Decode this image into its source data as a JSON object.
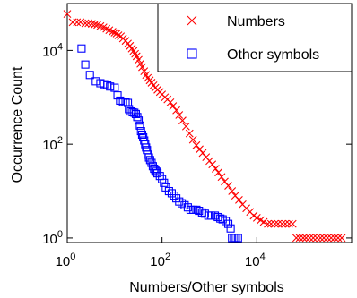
{
  "chart_data": {
    "type": "scatter",
    "xlabel": "Numbers/Other symbols",
    "ylabel": "Occurrence Count",
    "xscale": "log",
    "yscale": "log",
    "xlim": [
      1,
      1000000
    ],
    "ylim": [
      0.8,
      100000
    ],
    "xticks": [
      {
        "value": 1,
        "base": "10",
        "exp": "0"
      },
      {
        "value": 100,
        "base": "10",
        "exp": "2"
      },
      {
        "value": 10000,
        "base": "10",
        "exp": "4"
      }
    ],
    "yticks": [
      {
        "value": 1,
        "base": "10",
        "exp": "0"
      },
      {
        "value": 100,
        "base": "10",
        "exp": "2"
      },
      {
        "value": 10000,
        "base": "10",
        "exp": "4"
      }
    ],
    "grid": false,
    "legend_position": "top-right",
    "series": [
      {
        "name": "Numbers",
        "marker": "x",
        "color": "#ff0000",
        "points": [
          [
            1,
            60000
          ],
          [
            1.3,
            40000
          ],
          [
            1.6,
            40000
          ],
          [
            1.9,
            40000
          ],
          [
            2.4,
            38000
          ],
          [
            2.8,
            38000
          ],
          [
            3.3,
            37000
          ],
          [
            3.8,
            36000
          ],
          [
            4.3,
            35000
          ],
          [
            5,
            33000
          ],
          [
            5.8,
            31000
          ],
          [
            6.7,
            29000
          ],
          [
            7.7,
            27000
          ],
          [
            9,
            25000
          ],
          [
            10,
            24000
          ],
          [
            11,
            23000
          ],
          [
            12,
            21000
          ],
          [
            13.5,
            20000
          ],
          [
            15,
            18000
          ],
          [
            17,
            16000
          ],
          [
            19,
            14000
          ],
          [
            21,
            12500
          ],
          [
            23,
            11000
          ],
          [
            25,
            9800
          ],
          [
            27,
            8500
          ],
          [
            29,
            7500
          ],
          [
            32,
            6300
          ],
          [
            35,
            5200
          ],
          [
            38,
            4400
          ],
          [
            42,
            3600
          ],
          [
            46,
            3000
          ],
          [
            50,
            2600
          ],
          [
            55,
            2300
          ],
          [
            60,
            2050
          ],
          [
            66,
            1800
          ],
          [
            72,
            1600
          ],
          [
            80,
            1450
          ],
          [
            90,
            1300
          ],
          [
            100,
            1150
          ],
          [
            115,
            1000
          ],
          [
            130,
            900
          ],
          [
            150,
            780
          ],
          [
            170,
            650
          ],
          [
            200,
            530
          ],
          [
            230,
            420
          ],
          [
            270,
            320
          ],
          [
            320,
            240
          ],
          [
            380,
            170
          ],
          [
            450,
            125
          ],
          [
            530,
            95
          ],
          [
            620,
            78
          ],
          [
            720,
            65
          ],
          [
            850,
            53
          ],
          [
            1000,
            44
          ],
          [
            1150,
            37
          ],
          [
            1350,
            30
          ],
          [
            1550,
            25
          ],
          [
            1800,
            20
          ],
          [
            2100,
            16
          ],
          [
            2500,
            13
          ],
          [
            3000,
            10
          ],
          [
            3500,
            8
          ],
          [
            4200,
            6.5
          ],
          [
            5000,
            5.2
          ],
          [
            6000,
            4.3
          ],
          [
            7200,
            3.6
          ],
          [
            8600,
            3
          ],
          [
            10000,
            2.7
          ],
          [
            12000,
            2.4
          ],
          [
            14000,
            2.2
          ],
          [
            17000,
            2
          ],
          [
            20000,
            2
          ],
          [
            24000,
            2
          ],
          [
            28000,
            2
          ],
          [
            34000,
            2
          ],
          [
            40000,
            2
          ],
          [
            48000,
            2
          ],
          [
            57000,
            2
          ],
          [
            68000,
            1
          ],
          [
            80000,
            1
          ],
          [
            95000,
            1
          ],
          [
            110000,
            1
          ],
          [
            130000,
            1
          ],
          [
            155000,
            1
          ],
          [
            185000,
            1
          ],
          [
            220000,
            1
          ],
          [
            260000,
            1
          ],
          [
            310000,
            1
          ],
          [
            370000,
            1
          ],
          [
            440000,
            1
          ],
          [
            520000,
            1
          ],
          [
            620000,
            1
          ]
        ]
      },
      {
        "name": "Other symbols",
        "marker": "square",
        "color": "#0000ff",
        "points": [
          [
            2,
            11000
          ],
          [
            2.4,
            5000
          ],
          [
            3,
            3000
          ],
          [
            4,
            2200
          ],
          [
            5,
            2000
          ],
          [
            6,
            1900
          ],
          [
            7,
            1800
          ],
          [
            8,
            1700
          ],
          [
            10,
            1600
          ],
          [
            11.5,
            1100
          ],
          [
            13,
            850
          ],
          [
            15,
            800
          ],
          [
            17,
            780
          ],
          [
            19,
            760
          ],
          [
            20,
            560
          ],
          [
            22,
            500
          ],
          [
            24,
            480
          ],
          [
            26,
            470
          ],
          [
            28,
            440
          ],
          [
            30,
            380
          ],
          [
            32,
            320
          ],
          [
            34,
            250
          ],
          [
            36,
            190
          ],
          [
            38,
            160
          ],
          [
            40,
            140
          ],
          [
            42,
            120
          ],
          [
            44,
            100
          ],
          [
            46,
            85
          ],
          [
            48,
            75
          ],
          [
            50,
            60
          ],
          [
            53,
            52
          ],
          [
            56,
            46
          ],
          [
            60,
            40
          ],
          [
            64,
            34
          ],
          [
            68,
            30
          ],
          [
            72,
            28
          ],
          [
            76,
            26
          ],
          [
            80,
            24
          ],
          [
            90,
            21
          ],
          [
            100,
            18
          ],
          [
            110,
            15
          ],
          [
            120,
            12
          ],
          [
            140,
            10
          ],
          [
            160,
            9
          ],
          [
            180,
            8
          ],
          [
            200,
            7
          ],
          [
            230,
            6
          ],
          [
            260,
            5.5
          ],
          [
            300,
            5
          ],
          [
            350,
            4.5
          ],
          [
            400,
            4
          ],
          [
            460,
            4
          ],
          [
            530,
            4
          ],
          [
            600,
            3.8
          ],
          [
            700,
            3.5
          ],
          [
            800,
            3.3
          ],
          [
            950,
            3
          ],
          [
            1100,
            3
          ],
          [
            1300,
            3
          ],
          [
            1500,
            2.8
          ],
          [
            1700,
            2.6
          ],
          [
            1900,
            2.5
          ],
          [
            2200,
            2.3
          ],
          [
            2500,
            2
          ],
          [
            2800,
            1.6
          ],
          [
            3000,
            1
          ],
          [
            3300,
            1
          ],
          [
            3600,
            1
          ],
          [
            4000,
            1
          ]
        ]
      }
    ]
  }
}
